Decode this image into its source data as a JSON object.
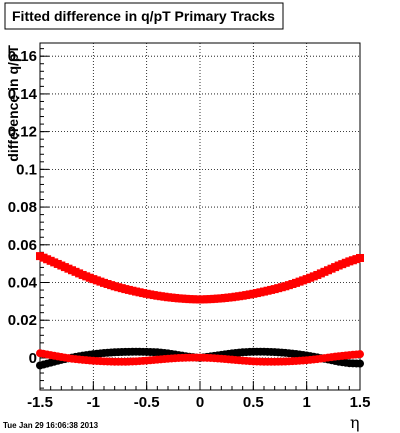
{
  "chart_data": {
    "type": "scatter",
    "title": "Fitted difference in q/pT  Primary Tracks",
    "xlabel": "η",
    "ylabel": "difference in q/pT",
    "xlim": [
      -1.5,
      1.5
    ],
    "ylim": [
      -0.017,
      0.167
    ],
    "grid": true,
    "x_ticks": [
      {
        "value": -1.5,
        "label": "-1.5"
      },
      {
        "value": -1.0,
        "label": "-1"
      },
      {
        "value": -0.5,
        "label": "-0.5"
      },
      {
        "value": 0.0,
        "label": "0"
      },
      {
        "value": 0.5,
        "label": "0.5"
      },
      {
        "value": 1.0,
        "label": "1"
      },
      {
        "value": 1.5,
        "label": "1.5"
      }
    ],
    "y_ticks": [
      {
        "value": 0.0,
        "label": "0"
      },
      {
        "value": 0.02,
        "label": "0.02"
      },
      {
        "value": 0.04,
        "label": "0.04"
      },
      {
        "value": 0.06,
        "label": "0.06"
      },
      {
        "value": 0.08,
        "label": "0.08"
      },
      {
        "value": 0.1,
        "label": "0.1"
      },
      {
        "value": 0.12,
        "label": "0.12"
      },
      {
        "value": 0.14,
        "label": "0.14"
      },
      {
        "value": 0.16,
        "label": "0.16"
      }
    ],
    "series": [
      {
        "color": "#ff0000",
        "marker": "square",
        "x": [
          -1.5,
          -1.4,
          -1.3,
          -1.2,
          -1.1,
          -1.0,
          -0.9,
          -0.8,
          -0.7,
          -0.6,
          -0.5,
          -0.4,
          -0.3,
          -0.2,
          -0.1,
          0.0,
          0.1,
          0.2,
          0.3,
          0.4,
          0.5,
          0.6,
          0.7,
          0.8,
          0.9,
          1.0,
          1.1,
          1.2,
          1.3,
          1.4,
          1.5
        ],
        "y": [
          0.054,
          0.0515,
          0.049,
          0.0465,
          0.044,
          0.0418,
          0.0398,
          0.038,
          0.0365,
          0.0352,
          0.034,
          0.033,
          0.0322,
          0.0316,
          0.0312,
          0.031,
          0.0312,
          0.0316,
          0.0322,
          0.033,
          0.034,
          0.0352,
          0.0365,
          0.038,
          0.0398,
          0.0418,
          0.044,
          0.0465,
          0.049,
          0.0512,
          0.053
        ]
      },
      {
        "color": "#000000",
        "marker": "circle",
        "x": [
          -1.5,
          -1.4,
          -1.3,
          -1.2,
          -1.1,
          -1.0,
          -0.9,
          -0.8,
          -0.7,
          -0.6,
          -0.5,
          -0.4,
          -0.3,
          -0.2,
          -0.1,
          0.0,
          0.1,
          0.2,
          0.3,
          0.4,
          0.5,
          0.6,
          0.7,
          0.8,
          0.9,
          1.0,
          1.1,
          1.2,
          1.3,
          1.4,
          1.5
        ],
        "y": [
          -0.004,
          -0.0025,
          -0.001,
          0.0002,
          0.0012,
          0.002,
          0.0026,
          0.003,
          0.0032,
          0.0033,
          0.0032,
          0.003,
          0.0024,
          0.0015,
          0.0006,
          0.0,
          0.0008,
          0.0016,
          0.0024,
          0.003,
          0.0033,
          0.0033,
          0.0031,
          0.0027,
          0.0021,
          0.0013,
          0.0003,
          -0.0008,
          -0.002,
          -0.0028,
          -0.003
        ]
      },
      {
        "color": "#ff0000",
        "marker": "circle",
        "x": [
          -1.5,
          -1.4,
          -1.3,
          -1.2,
          -1.1,
          -1.0,
          -0.9,
          -0.8,
          -0.7,
          -0.6,
          -0.5,
          -0.4,
          -0.3,
          -0.2,
          -0.1,
          0.0,
          0.1,
          0.2,
          0.3,
          0.4,
          0.5,
          0.6,
          0.7,
          0.8,
          0.9,
          1.0,
          1.1,
          1.2,
          1.3,
          1.4,
          1.5
        ],
        "y": [
          0.0025,
          0.0015,
          0.0005,
          -0.0004,
          -0.001,
          -0.0015,
          -0.0018,
          -0.002,
          -0.002,
          -0.0018,
          -0.0014,
          -0.0009,
          -0.0004,
          0.0,
          0.0002,
          0.0002,
          0.0,
          -0.0004,
          -0.0009,
          -0.0014,
          -0.0018,
          -0.002,
          -0.002,
          -0.0019,
          -0.0016,
          -0.0012,
          -0.0006,
          0.0002,
          0.0009,
          0.0015,
          0.002
        ]
      }
    ]
  },
  "footer": {
    "timestamp": "Tue Jan 29 16:06:38 2013"
  }
}
